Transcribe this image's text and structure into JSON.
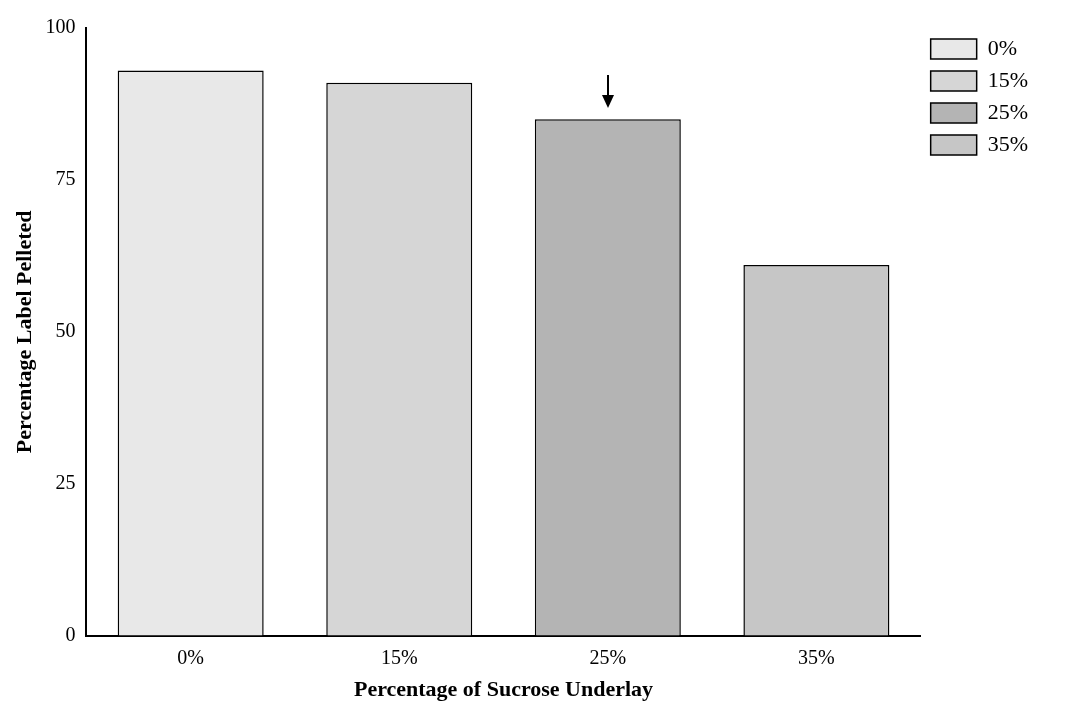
{
  "chart_data": {
    "type": "bar",
    "xlabel": "Percentage of Sucrose Underlay",
    "ylabel": "Percentage Label Pelleted",
    "categories": [
      "0%",
      "15%",
      "25%",
      "35%"
    ],
    "series": [
      {
        "name": "0%",
        "color": "#e8e8e8",
        "values": [
          93,
          null,
          null,
          null
        ]
      },
      {
        "name": "15%",
        "color": "#d6d6d6",
        "values": [
          null,
          91,
          null,
          null
        ]
      },
      {
        "name": "25%",
        "color": "#b4b4b4",
        "values": [
          null,
          null,
          85,
          null
        ]
      },
      {
        "name": "35%",
        "color": "#c6c6c6",
        "values": [
          null,
          null,
          null,
          61
        ]
      }
    ],
    "ylim": [
      0,
      100
    ],
    "yticks": [
      0,
      25,
      50,
      75,
      100
    ],
    "grid": false,
    "legend": "top right"
  }
}
